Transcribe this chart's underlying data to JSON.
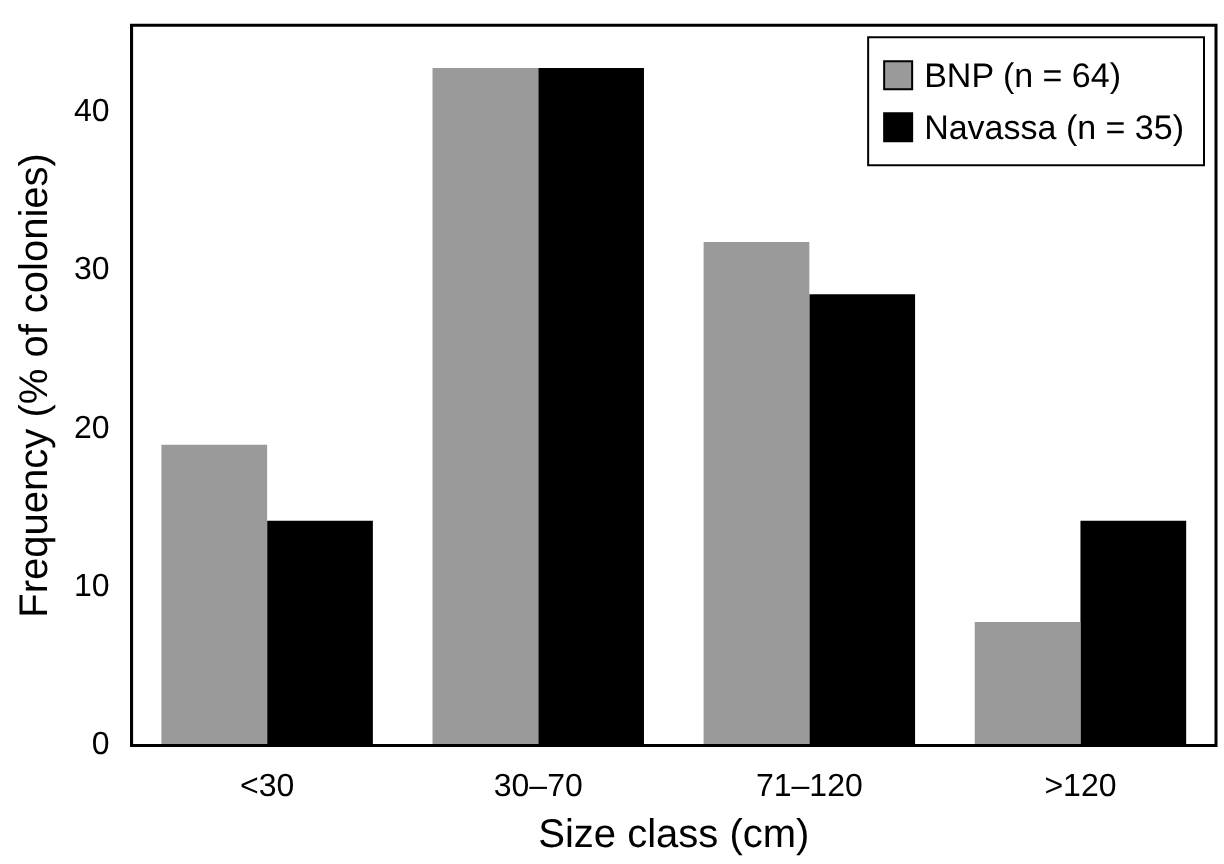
{
  "chart_data": {
    "type": "bar",
    "xlabel": "Size class (cm)",
    "ylabel": "Frequency (% of colonies)",
    "categories": [
      "<30",
      "30–70",
      "71–120",
      ">120"
    ],
    "series": [
      {
        "name": "BNP (n = 64)",
        "color": "#9a9a9a",
        "values": [
          19,
          42.8,
          31.8,
          7.8
        ]
      },
      {
        "name": "Navassa (n = 35)",
        "color": "#000000",
        "values": [
          14.2,
          42.8,
          28.5,
          14.2
        ]
      }
    ],
    "ylim": [
      0,
      45.5
    ],
    "yticks": [
      0,
      10,
      20,
      30,
      40
    ],
    "grid": false,
    "legend": "top right"
  }
}
